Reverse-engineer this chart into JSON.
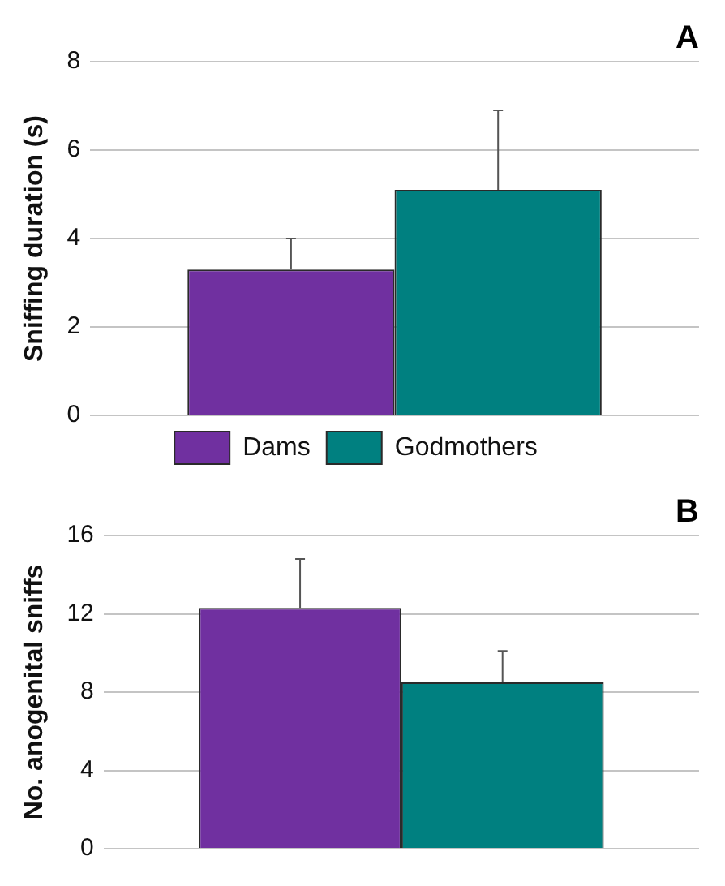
{
  "chart_data": [
    {
      "type": "bar",
      "title": "A",
      "ylabel": "Sniffing duration (s)",
      "categories": [
        null
      ],
      "legend": "bottom",
      "grid": "y",
      "ylim": [
        0,
        8
      ],
      "yticks": [
        0,
        2,
        4,
        6,
        8
      ],
      "series": [
        {
          "name": "Dams",
          "color": "#7030a0",
          "values": [
            3.3
          ],
          "errors": [
            [
              3.3,
              4.0
            ]
          ]
        },
        {
          "name": "Godmothers",
          "color": "#008080",
          "values": [
            5.1
          ],
          "errors": [
            [
              5.1,
              6.9
            ]
          ]
        }
      ]
    },
    {
      "type": "bar",
      "title": "B",
      "ylabel": "No. anogenital sniffs",
      "categories": [
        null
      ],
      "grid": "y",
      "ylim": [
        0,
        16
      ],
      "yticks": [
        0,
        4,
        8,
        12,
        16
      ],
      "series": [
        {
          "color": "#7030a0",
          "values": [
            12.3
          ],
          "errors": [
            [
              12.3,
              14.8
            ]
          ]
        },
        {
          "color": "#008080",
          "values": [
            8.5
          ],
          "errors": [
            [
              8.5,
              10.1
            ]
          ]
        }
      ]
    }
  ]
}
